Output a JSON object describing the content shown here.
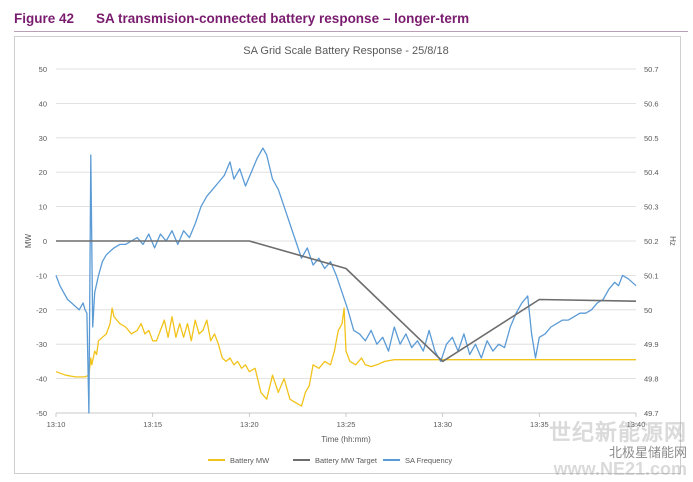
{
  "figure": {
    "number": "Figure 42",
    "title": "SA transmision-connected battery response – longer-term",
    "accent_color": "#7a1c6e"
  },
  "chart_data": {
    "type": "line",
    "title": "SA Grid Scale Battery Response - 25/8/18",
    "xlabel": "Time (hh:mm)",
    "ylabel": "MW",
    "y2label": "Hz",
    "x_ticks": [
      "13:10",
      "13:15",
      "13:20",
      "13:25",
      "13:30",
      "13:35",
      "13:40"
    ],
    "x_range_minutes": [
      0,
      30
    ],
    "ylim": [
      -50,
      50
    ],
    "y_ticks": [
      50,
      40,
      30,
      20,
      10,
      0,
      -10,
      -20,
      -30,
      -40,
      -50
    ],
    "y2lim": [
      49.7,
      50.7
    ],
    "y2_ticks": [
      "50.7",
      "50.6",
      "50.5",
      "50.4",
      "50.3",
      "50.2",
      "50.1",
      "50",
      "49.9",
      "49.8",
      "49.7"
    ],
    "grid": "horizontal",
    "legend_position": "bottom",
    "series": [
      {
        "name": "Battery MW",
        "axis": "left",
        "color": "#f2c31b",
        "points": [
          [
            0,
            -38
          ],
          [
            0.5,
            -39
          ],
          [
            1,
            -39.5
          ],
          [
            1.5,
            -39.5
          ],
          [
            1.7,
            -39
          ],
          [
            1.8,
            -34
          ],
          [
            1.85,
            -36
          ],
          [
            2,
            -32
          ],
          [
            2.1,
            -33
          ],
          [
            2.2,
            -29
          ],
          [
            2.4,
            -28
          ],
          [
            2.6,
            -27
          ],
          [
            2.8,
            -24
          ],
          [
            2.9,
            -19.5
          ],
          [
            3.0,
            -22
          ],
          [
            3.3,
            -24
          ],
          [
            3.6,
            -25
          ],
          [
            3.9,
            -27
          ],
          [
            4.2,
            -26
          ],
          [
            4.4,
            -24
          ],
          [
            4.6,
            -27
          ],
          [
            4.8,
            -26
          ],
          [
            5.0,
            -29
          ],
          [
            5.2,
            -29
          ],
          [
            5.4,
            -26
          ],
          [
            5.6,
            -23
          ],
          [
            5.8,
            -28
          ],
          [
            6.0,
            -22
          ],
          [
            6.2,
            -28
          ],
          [
            6.4,
            -24
          ],
          [
            6.6,
            -28
          ],
          [
            6.8,
            -24
          ],
          [
            7.0,
            -29
          ],
          [
            7.2,
            -23
          ],
          [
            7.4,
            -27
          ],
          [
            7.6,
            -26
          ],
          [
            7.8,
            -23
          ],
          [
            8.0,
            -29
          ],
          [
            8.2,
            -27
          ],
          [
            8.4,
            -30
          ],
          [
            8.6,
            -34
          ],
          [
            8.8,
            -35
          ],
          [
            9.0,
            -34
          ],
          [
            9.2,
            -36
          ],
          [
            9.4,
            -35
          ],
          [
            9.6,
            -37
          ],
          [
            9.8,
            -36
          ],
          [
            10.0,
            -38
          ],
          [
            10.3,
            -37
          ],
          [
            10.6,
            -44
          ],
          [
            10.9,
            -46
          ],
          [
            11.2,
            -39
          ],
          [
            11.5,
            -44
          ],
          [
            11.8,
            -40
          ],
          [
            12.1,
            -46
          ],
          [
            12.4,
            -47
          ],
          [
            12.7,
            -48
          ],
          [
            12.9,
            -44
          ],
          [
            13.1,
            -42
          ],
          [
            13.3,
            -36
          ],
          [
            13.6,
            -37
          ],
          [
            13.9,
            -35
          ],
          [
            14.2,
            -36
          ],
          [
            14.4,
            -32
          ],
          [
            14.6,
            -26
          ],
          [
            14.8,
            -24
          ],
          [
            14.9,
            -19.5
          ],
          [
            15.0,
            -32
          ],
          [
            15.2,
            -35
          ],
          [
            15.5,
            -36
          ],
          [
            15.8,
            -34
          ],
          [
            16.0,
            -36
          ],
          [
            16.3,
            -36.5
          ],
          [
            16.6,
            -36
          ],
          [
            17.0,
            -35
          ],
          [
            17.5,
            -34.5
          ],
          [
            18,
            -34.5
          ],
          [
            19,
            -34.5
          ],
          [
            20,
            -34.5
          ],
          [
            21,
            -34.5
          ],
          [
            22,
            -34.5
          ],
          [
            23,
            -34.5
          ],
          [
            24,
            -34.5
          ],
          [
            25,
            -34.5
          ],
          [
            26,
            -34.5
          ],
          [
            27,
            -34.5
          ],
          [
            28,
            -34.5
          ],
          [
            29,
            -34.5
          ],
          [
            30,
            -34.5
          ]
        ]
      },
      {
        "name": "Battery MW Target",
        "axis": "left",
        "color": "#6d6d6d",
        "points": [
          [
            0,
            0
          ],
          [
            10,
            0
          ],
          [
            15,
            -8
          ],
          [
            20,
            -35
          ],
          [
            25,
            -17
          ],
          [
            30,
            -17.5
          ]
        ]
      },
      {
        "name": "SA Frequency",
        "axis": "right",
        "color": "#5b9bd5",
        "points": [
          [
            0,
            50.1
          ],
          [
            0.2,
            50.07
          ],
          [
            0.4,
            50.05
          ],
          [
            0.6,
            50.03
          ],
          [
            0.8,
            50.02
          ],
          [
            1.0,
            50.01
          ],
          [
            1.2,
            50.0
          ],
          [
            1.4,
            50.02
          ],
          [
            1.5,
            50.0
          ],
          [
            1.6,
            49.99
          ],
          [
            1.7,
            49.7
          ],
          [
            1.8,
            50.45
          ],
          [
            1.9,
            49.95
          ],
          [
            2.0,
            50.05
          ],
          [
            2.2,
            50.1
          ],
          [
            2.4,
            50.14
          ],
          [
            2.6,
            50.16
          ],
          [
            2.8,
            50.17
          ],
          [
            3.0,
            50.18
          ],
          [
            3.3,
            50.19
          ],
          [
            3.6,
            50.19
          ],
          [
            3.9,
            50.2
          ],
          [
            4.2,
            50.21
          ],
          [
            4.5,
            50.19
          ],
          [
            4.8,
            50.22
          ],
          [
            5.1,
            50.18
          ],
          [
            5.4,
            50.22
          ],
          [
            5.7,
            50.2
          ],
          [
            6.0,
            50.23
          ],
          [
            6.3,
            50.19
          ],
          [
            6.6,
            50.23
          ],
          [
            6.9,
            50.21
          ],
          [
            7.2,
            50.25
          ],
          [
            7.5,
            50.3
          ],
          [
            7.8,
            50.33
          ],
          [
            8.1,
            50.35
          ],
          [
            8.4,
            50.37
          ],
          [
            8.7,
            50.39
          ],
          [
            9.0,
            50.43
          ],
          [
            9.2,
            50.38
          ],
          [
            9.5,
            50.41
          ],
          [
            9.8,
            50.36
          ],
          [
            10.1,
            50.4
          ],
          [
            10.4,
            50.44
          ],
          [
            10.7,
            50.47
          ],
          [
            10.9,
            50.45
          ],
          [
            11.2,
            50.38
          ],
          [
            11.5,
            50.35
          ],
          [
            11.8,
            50.3
          ],
          [
            12.1,
            50.25
          ],
          [
            12.4,
            50.2
          ],
          [
            12.7,
            50.15
          ],
          [
            13.0,
            50.18
          ],
          [
            13.3,
            50.13
          ],
          [
            13.6,
            50.15
          ],
          [
            13.9,
            50.12
          ],
          [
            14.2,
            50.14
          ],
          [
            14.5,
            50.1
          ],
          [
            14.8,
            50.05
          ],
          [
            15.1,
            50.0
          ],
          [
            15.4,
            49.94
          ],
          [
            15.7,
            49.93
          ],
          [
            16.0,
            49.91
          ],
          [
            16.3,
            49.94
          ],
          [
            16.6,
            49.9
          ],
          [
            16.9,
            49.92
          ],
          [
            17.2,
            49.88
          ],
          [
            17.5,
            49.95
          ],
          [
            17.8,
            49.9
          ],
          [
            18.1,
            49.93
          ],
          [
            18.4,
            49.89
          ],
          [
            18.7,
            49.91
          ],
          [
            19.0,
            49.88
          ],
          [
            19.3,
            49.94
          ],
          [
            19.6,
            49.88
          ],
          [
            19.9,
            49.85
          ],
          [
            20.2,
            49.9
          ],
          [
            20.5,
            49.92
          ],
          [
            20.8,
            49.88
          ],
          [
            21.1,
            49.93
          ],
          [
            21.4,
            49.87
          ],
          [
            21.7,
            49.9
          ],
          [
            22.0,
            49.86
          ],
          [
            22.3,
            49.91
          ],
          [
            22.6,
            49.88
          ],
          [
            22.9,
            49.9
          ],
          [
            23.2,
            49.89
          ],
          [
            23.5,
            49.95
          ],
          [
            23.8,
            49.99
          ],
          [
            24.1,
            50.02
          ],
          [
            24.4,
            50.04
          ],
          [
            24.6,
            49.93
          ],
          [
            24.8,
            49.86
          ],
          [
            25.0,
            49.92
          ],
          [
            25.3,
            49.93
          ],
          [
            25.6,
            49.95
          ],
          [
            25.9,
            49.96
          ],
          [
            26.2,
            49.97
          ],
          [
            26.5,
            49.97
          ],
          [
            26.8,
            49.98
          ],
          [
            27.1,
            49.99
          ],
          [
            27.4,
            49.99
          ],
          [
            27.7,
            50.0
          ],
          [
            28.0,
            50.02
          ],
          [
            28.3,
            50.03
          ],
          [
            28.6,
            50.06
          ],
          [
            28.9,
            50.08
          ],
          [
            29.1,
            50.07
          ],
          [
            29.3,
            50.1
          ],
          [
            29.6,
            50.09
          ],
          [
            30.0,
            50.07
          ]
        ]
      }
    ]
  },
  "watermark": {
    "line1": "世纪新能源网",
    "line2": "北极星储能网",
    "line3": "www.NE21.com"
  }
}
